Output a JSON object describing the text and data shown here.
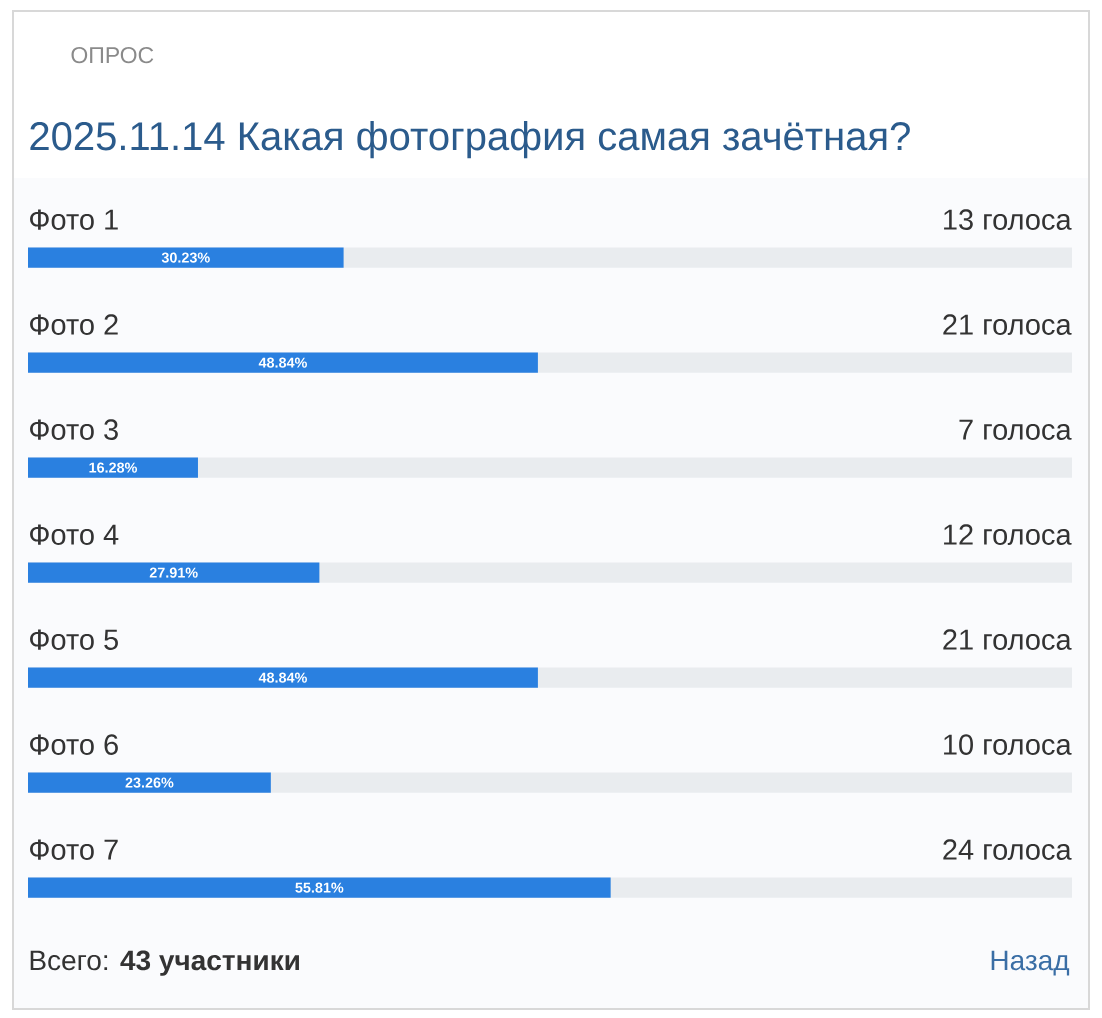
{
  "chart_data": {
    "type": "bar",
    "orientation": "horizontal",
    "title": "2025.11.14 Какая фотография самая зачётная?",
    "categories": [
      "Фото 1",
      "Фото 2",
      "Фото 3",
      "Фото 4",
      "Фото 5",
      "Фото 6",
      "Фото 7"
    ],
    "values": [
      30.23,
      48.84,
      16.28,
      27.91,
      48.84,
      23.26,
      55.81
    ],
    "value_labels": [
      "30.23%",
      "48.84%",
      "16.28%",
      "27.91%",
      "48.84%",
      "23.26%",
      "55.81%"
    ],
    "color": "#2a80e0",
    "xlim": [
      0,
      100
    ],
    "tick_labels": "y",
    "annotations": [
      "ОПРОС",
      "13 голоса",
      "21 голоса",
      "7 голоса",
      "12 голоса",
      "21 голоса",
      "10 голоса",
      "24 голоса",
      "Всего: **43 участники**",
      "Назад"
    ]
  }
}
